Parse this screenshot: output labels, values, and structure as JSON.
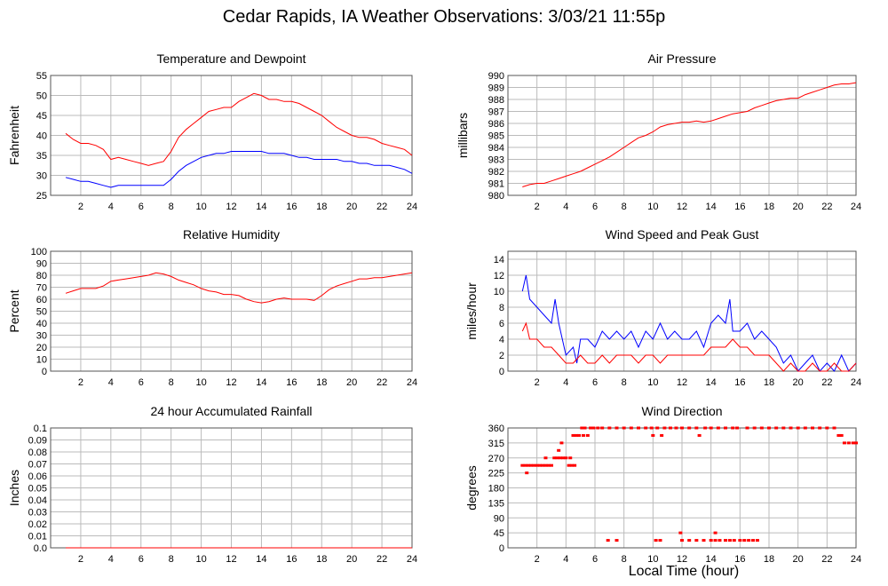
{
  "page": {
    "title": "Cedar Rapids, IA Weather Observations: 3/03/21 11:55p",
    "xlabel": "Local Time (hour)"
  },
  "colors": {
    "red": "#ff0000",
    "blue": "#0000ff",
    "grid": "#bbbbbb",
    "frame": "#555555"
  },
  "chart_data": [
    {
      "id": "temperature",
      "type": "line",
      "title": "Temperature and Dewpoint",
      "ylabel": "Fahrenheit",
      "xlim": [
        0,
        24
      ],
      "ylim": [
        25,
        55
      ],
      "xticks": [
        2,
        4,
        6,
        8,
        10,
        12,
        14,
        16,
        18,
        20,
        22,
        24
      ],
      "yticks": [
        25,
        30,
        35,
        40,
        45,
        50,
        55
      ],
      "grid": true,
      "series": [
        {
          "color": "#ff0000",
          "x": [
            1,
            1.5,
            2,
            2.5,
            3,
            3.5,
            4,
            4.5,
            5,
            5.5,
            6,
            6.5,
            7,
            7.5,
            8,
            8.5,
            9,
            9.5,
            10,
            10.5,
            11,
            11.5,
            12,
            12.5,
            13,
            13.5,
            14,
            14.5,
            15,
            15.5,
            16,
            16.5,
            17,
            17.5,
            18,
            18.5,
            19,
            19.5,
            20,
            20.5,
            21,
            21.5,
            22,
            22.5,
            23,
            23.5,
            24
          ],
          "y": [
            40.5,
            39,
            38,
            38,
            37.5,
            36.5,
            34,
            34.5,
            34,
            33.5,
            33,
            32.5,
            33,
            33.5,
            36,
            39.5,
            41.5,
            43,
            44.5,
            46,
            46.5,
            47,
            47,
            48.5,
            49.5,
            50.5,
            50,
            49,
            49,
            48.5,
            48.5,
            48,
            47,
            46,
            45,
            43.5,
            42,
            41,
            40,
            39.5,
            39.5,
            39,
            38,
            37.5,
            37,
            36.5,
            35
          ]
        },
        {
          "color": "#0000ff",
          "x": [
            1,
            1.5,
            2,
            2.5,
            3,
            3.5,
            4,
            4.5,
            5,
            5.5,
            6,
            6.5,
            7,
            7.5,
            8,
            8.5,
            9,
            9.5,
            10,
            10.5,
            11,
            11.5,
            12,
            12.5,
            13,
            13.5,
            14,
            14.5,
            15,
            15.5,
            16,
            16.5,
            17,
            17.5,
            18,
            18.5,
            19,
            19.5,
            20,
            20.5,
            21,
            21.5,
            22,
            22.5,
            23,
            23.5,
            24
          ],
          "y": [
            29.5,
            29,
            28.5,
            28.5,
            28,
            27.5,
            27,
            27.5,
            27.5,
            27.5,
            27.5,
            27.5,
            27.5,
            27.5,
            29,
            31,
            32.5,
            33.5,
            34.5,
            35,
            35.5,
            35.5,
            36,
            36,
            36,
            36,
            36,
            35.5,
            35.5,
            35.5,
            35,
            34.5,
            34.5,
            34,
            34,
            34,
            34,
            33.5,
            33.5,
            33,
            33,
            32.5,
            32.5,
            32.5,
            32,
            31.5,
            30.5
          ]
        }
      ]
    },
    {
      "id": "pressure",
      "type": "line",
      "title": "Air Pressure",
      "ylabel": "millibars",
      "xlim": [
        0,
        24
      ],
      "ylim": [
        980,
        990
      ],
      "xticks": [
        2,
        4,
        6,
        8,
        10,
        12,
        14,
        16,
        18,
        20,
        22,
        24
      ],
      "yticks": [
        980,
        981,
        982,
        983,
        984,
        985,
        986,
        987,
        988,
        989,
        990
      ],
      "grid": true,
      "series": [
        {
          "color": "#ff0000",
          "x": [
            1,
            1.5,
            2,
            2.5,
            3,
            3.5,
            4,
            4.5,
            5,
            5.5,
            6,
            6.5,
            7,
            7.5,
            8,
            8.5,
            9,
            9.5,
            10,
            10.5,
            11,
            11.5,
            12,
            12.5,
            13,
            13.5,
            14,
            14.5,
            15,
            15.5,
            16,
            16.5,
            17,
            17.5,
            18,
            18.5,
            19,
            19.5,
            20,
            20.5,
            21,
            21.5,
            22,
            22.5,
            23,
            23.5,
            24
          ],
          "y": [
            980.7,
            980.9,
            981,
            981,
            981.2,
            981.4,
            981.6,
            981.8,
            982,
            982.3,
            982.6,
            982.9,
            983.2,
            983.6,
            984,
            984.4,
            984.8,
            985,
            985.3,
            985.7,
            985.9,
            986,
            986.1,
            986.1,
            986.2,
            986.1,
            986.2,
            986.4,
            986.6,
            986.8,
            986.9,
            987,
            987.3,
            987.5,
            987.7,
            987.9,
            988,
            988.1,
            988.1,
            988.4,
            988.6,
            988.8,
            989,
            989.2,
            989.3,
            989.3,
            989.4
          ]
        }
      ]
    },
    {
      "id": "humidity",
      "type": "line",
      "title": "Relative Humidity",
      "ylabel": "Percent",
      "xlim": [
        0,
        24
      ],
      "ylim": [
        0,
        100
      ],
      "xticks": [
        2,
        4,
        6,
        8,
        10,
        12,
        14,
        16,
        18,
        20,
        22,
        24
      ],
      "yticks": [
        0,
        10,
        20,
        30,
        40,
        50,
        60,
        70,
        80,
        90,
        100
      ],
      "grid": true,
      "series": [
        {
          "color": "#ff0000",
          "x": [
            1,
            1.5,
            2,
            2.5,
            3,
            3.5,
            4,
            4.5,
            5,
            5.5,
            6,
            6.5,
            7,
            7.5,
            8,
            8.5,
            9,
            9.5,
            10,
            10.5,
            11,
            11.5,
            12,
            12.5,
            13,
            13.5,
            14,
            14.5,
            15,
            15.5,
            16,
            16.5,
            17,
            17.5,
            18,
            18.5,
            19,
            19.5,
            20,
            20.5,
            21,
            21.5,
            22,
            22.5,
            23,
            23.5,
            24
          ],
          "y": [
            65,
            67,
            69,
            69,
            69,
            71,
            75,
            76,
            77,
            78,
            79,
            80,
            82,
            81,
            79,
            76,
            74,
            72,
            69,
            67,
            66,
            64,
            64,
            63,
            60,
            58,
            57,
            58,
            60,
            61,
            60,
            60,
            60,
            59,
            63,
            68,
            71,
            73,
            75,
            77,
            77,
            78,
            78,
            79,
            80,
            81,
            82
          ]
        }
      ]
    },
    {
      "id": "wind",
      "type": "line",
      "title": "Wind Speed and Peak Gust",
      "ylabel": "miles/hour",
      "xlim": [
        0,
        24
      ],
      "ylim": [
        0,
        15
      ],
      "xticks": [
        2,
        4,
        6,
        8,
        10,
        12,
        14,
        16,
        18,
        20,
        22,
        24
      ],
      "yticks": [
        0,
        2,
        4,
        6,
        8,
        10,
        12,
        14
      ],
      "grid": true,
      "series": [
        {
          "color": "#0000ff",
          "x": [
            1,
            1.25,
            1.5,
            2,
            2.5,
            3,
            3.25,
            3.5,
            4,
            4.5,
            4.75,
            5,
            5.5,
            6,
            6.5,
            7,
            7.5,
            8,
            8.5,
            9,
            9.5,
            10,
            10.5,
            11,
            11.5,
            12,
            12.5,
            13,
            13.5,
            14,
            14.5,
            15,
            15.3,
            15.5,
            16,
            16.5,
            17,
            17.5,
            18,
            18.5,
            19,
            19.5,
            20,
            20.5,
            21,
            21.5,
            22,
            22.5,
            23,
            23.5,
            24
          ],
          "y": [
            10,
            12,
            9,
            8,
            7,
            6,
            9,
            6,
            2,
            3,
            1,
            4,
            4,
            3,
            5,
            4,
            5,
            4,
            5,
            3,
            5,
            4,
            6,
            4,
            5,
            4,
            4,
            5,
            3,
            6,
            7,
            6,
            9,
            5,
            5,
            6,
            4,
            5,
            4,
            3,
            1,
            2,
            0,
            1,
            2,
            0,
            1,
            0,
            2,
            0,
            1
          ]
        },
        {
          "color": "#ff0000",
          "x": [
            1,
            1.25,
            1.5,
            2,
            2.5,
            3,
            3.5,
            4,
            4.5,
            5,
            5.5,
            6,
            6.5,
            7,
            7.5,
            8,
            8.5,
            9,
            9.5,
            10,
            10.5,
            11,
            11.5,
            12,
            12.5,
            13,
            13.5,
            14,
            14.5,
            15,
            15.5,
            16,
            16.5,
            17,
            17.5,
            18,
            18.5,
            19,
            19.5,
            20,
            20.5,
            21,
            21.5,
            22,
            22.5,
            23,
            23.5,
            24
          ],
          "y": [
            5,
            6,
            4,
            4,
            3,
            3,
            2,
            1,
            1,
            2,
            1,
            1,
            2,
            1,
            2,
            2,
            2,
            1,
            2,
            2,
            1,
            2,
            2,
            2,
            2,
            2,
            2,
            3,
            3,
            3,
            4,
            3,
            3,
            2,
            2,
            2,
            1,
            0,
            1,
            0,
            0,
            1,
            0,
            0,
            1,
            0,
            0,
            1
          ]
        }
      ]
    },
    {
      "id": "rainfall",
      "type": "line",
      "title": "24 hour Accumulated Rainfall",
      "ylabel": "Inches",
      "xlim": [
        0,
        24
      ],
      "ylim": [
        0,
        0.1
      ],
      "xticks": [
        2,
        4,
        6,
        8,
        10,
        12,
        14,
        16,
        18,
        20,
        22,
        24
      ],
      "yticks": [
        0.0,
        0.01,
        0.02,
        0.03,
        0.04,
        0.05,
        0.06,
        0.07,
        0.08,
        0.09,
        0.1
      ],
      "ytick_labels": [
        "0.0",
        "0.01",
        "0.02",
        "0.03",
        "0.04",
        "0.05",
        "0.06",
        "0.07",
        "0.08",
        "0.09",
        "0.1"
      ],
      "grid": true,
      "series": [
        {
          "color": "#ff0000",
          "x": [
            1,
            24
          ],
          "y": [
            0,
            0
          ]
        }
      ]
    },
    {
      "id": "direction",
      "type": "scatter",
      "title": "Wind Direction",
      "ylabel": "degrees",
      "xlim": [
        0,
        24
      ],
      "ylim": [
        0,
        360
      ],
      "xticks": [
        2,
        4,
        6,
        8,
        10,
        12,
        14,
        16,
        18,
        20,
        22,
        24
      ],
      "yticks": [
        0,
        45,
        90,
        135,
        180,
        225,
        270,
        315,
        360
      ],
      "grid": true,
      "series": [
        {
          "color": "#ff0000",
          "x": [
            1,
            1.2,
            1.4,
            1.6,
            1.8,
            2,
            2.2,
            2.4,
            2.6,
            2.8,
            3,
            3.2,
            3.4,
            3.6,
            3.8,
            4,
            4.2,
            4.4,
            4.6,
            1.3,
            2.6,
            3.5,
            3.7,
            4.7,
            4.9,
            5.1,
            5.3,
            5.5,
            5.7,
            5.9,
            6.2,
            6.5,
            7,
            7.5,
            8,
            8.5,
            9,
            9.5,
            9.9,
            10.3,
            10.8,
            11.2,
            11.6,
            12,
            12.5,
            13,
            13.6,
            14,
            14.5,
            15,
            15.5,
            15.8,
            16.5,
            17,
            17.5,
            18,
            18.5,
            19,
            19.5,
            20,
            20.5,
            21,
            21.5,
            22,
            22.5,
            22.8,
            23,
            23.2,
            23.5,
            23.8,
            24,
            6.9,
            7.5,
            10.2,
            10.5,
            12,
            12.5,
            13,
            13.5,
            14,
            14.3,
            14.6,
            15,
            15.3,
            15.6,
            16,
            16.3,
            16.6,
            16.9,
            17.2,
            11.9,
            14.3,
            4.3,
            4.5,
            5.2,
            10,
            10.6,
            13.2
          ],
          "y": [
            247.5,
            247.5,
            247.5,
            247.5,
            247.5,
            247.5,
            247.5,
            247.5,
            247.5,
            247.5,
            247.5,
            270,
            270,
            270,
            270,
            270,
            247.5,
            247.5,
            247.5,
            225,
            270,
            292.5,
            315,
            337.5,
            337.5,
            360,
            360,
            337.5,
            360,
            360,
            360,
            360,
            360,
            360,
            360,
            360,
            360,
            360,
            360,
            360,
            360,
            360,
            360,
            360,
            360,
            360,
            360,
            360,
            360,
            360,
            360,
            360,
            360,
            360,
            360,
            360,
            360,
            360,
            360,
            360,
            360,
            360,
            360,
            360,
            360,
            337.5,
            337.5,
            315,
            315,
            315,
            315,
            22.5,
            22.5,
            22.5,
            22.5,
            22.5,
            22.5,
            22.5,
            22.5,
            22.5,
            22.5,
            22.5,
            22.5,
            22.5,
            22.5,
            22.5,
            22.5,
            22.5,
            22.5,
            22.5,
            45,
            45,
            270,
            337.5,
            337.5,
            337.5,
            337.5,
            337.5
          ]
        }
      ]
    }
  ]
}
